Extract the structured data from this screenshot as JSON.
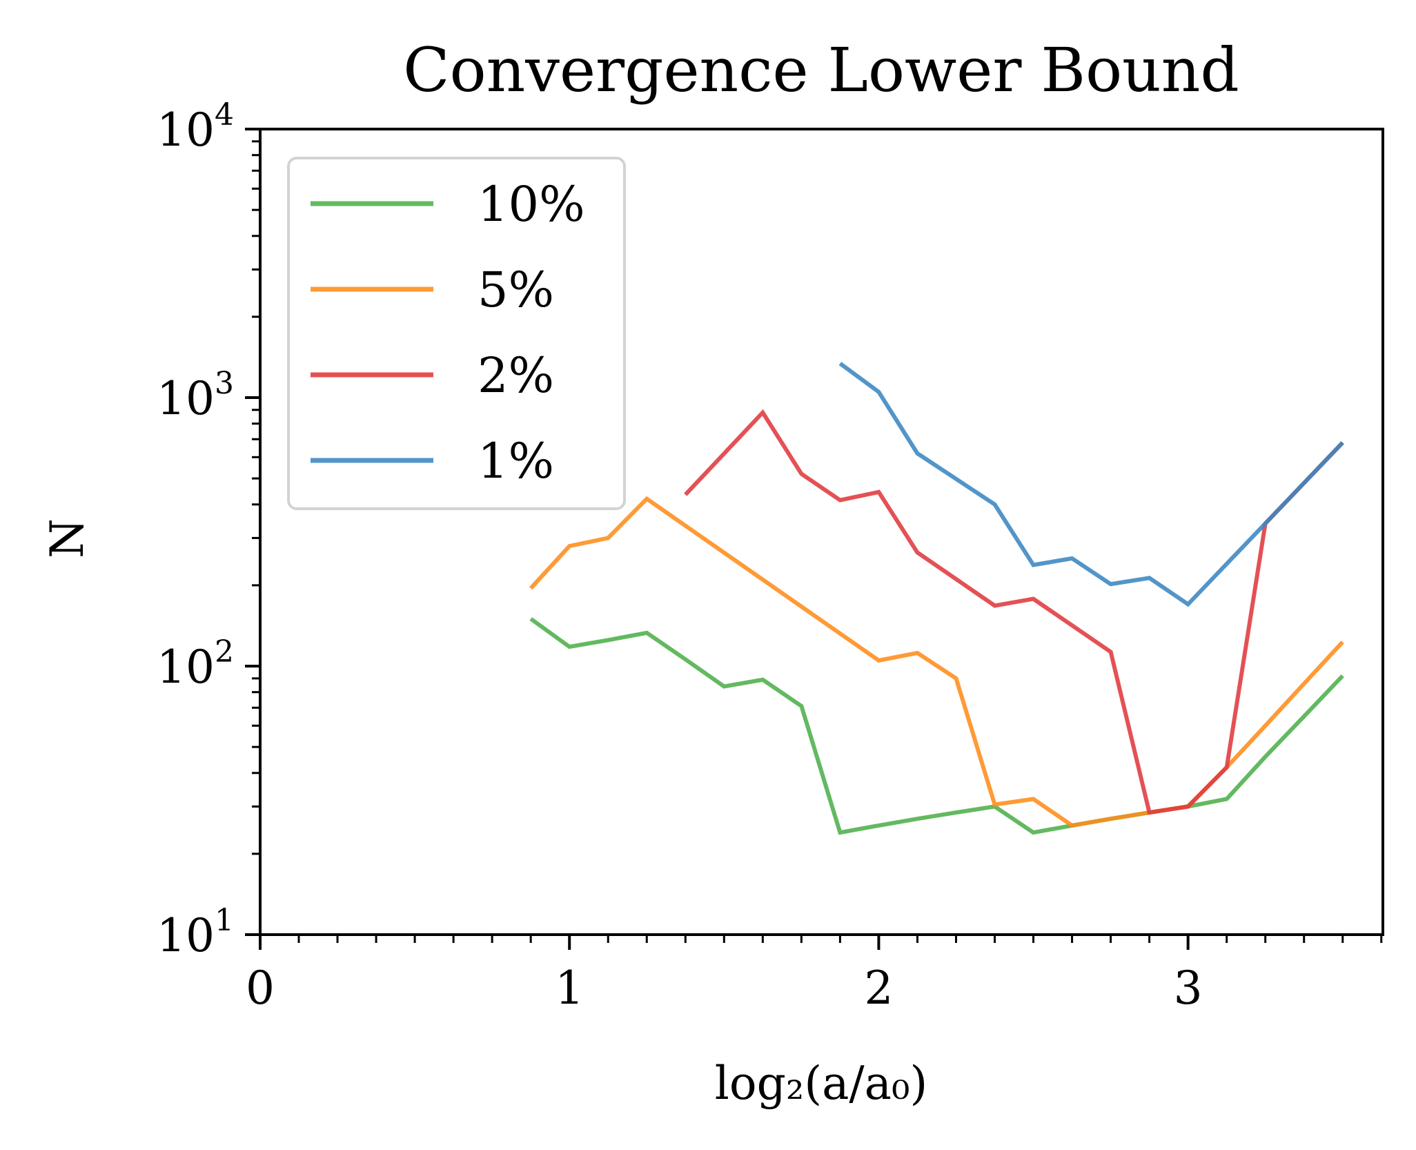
{
  "chart_data": {
    "type": "line",
    "title": "Convergence Lower Bound",
    "xlabel": "log₂(a/a₀)",
    "ylabel": "N",
    "xlim": [
      0,
      3.63
    ],
    "ylim": [
      10,
      10000
    ],
    "yscale": "log",
    "x_ticks": [
      "0",
      "1",
      "2",
      "3"
    ],
    "y_ticks": [
      {
        "base": "10",
        "exp": "1"
      },
      {
        "base": "10",
        "exp": "2"
      },
      {
        "base": "10",
        "exp": "3"
      },
      {
        "base": "10",
        "exp": "4"
      }
    ],
    "grid": false,
    "legend_position": "upper-left",
    "series": [
      {
        "name": "10%",
        "color": "#4daf4a",
        "x": [
          0.875,
          1.0,
          1.125,
          1.25,
          1.375,
          1.5,
          1.625,
          1.75,
          1.875,
          2.0,
          2.125,
          2.25,
          2.375,
          2.5,
          2.625,
          2.75,
          2.875,
          3.0,
          3.125,
          3.25,
          3.375,
          3.5
        ],
        "y": [
          150,
          118,
          125,
          133,
          106,
          84,
          89,
          71,
          24,
          25.5,
          27,
          28.5,
          30,
          24,
          25.5,
          27,
          28.5,
          30,
          32,
          46,
          65,
          92
        ]
      },
      {
        "name": "5%",
        "color": "#ff8c1a",
        "x": [
          0.875,
          1.0,
          1.125,
          1.25,
          2.0,
          2.125,
          2.25,
          2.375,
          2.5,
          2.625,
          2.75,
          2.875,
          3.0,
          3.125,
          3.25,
          3.375,
          3.5
        ],
        "y": [
          195,
          280,
          300,
          420,
          105,
          112,
          90,
          30.5,
          32,
          25.5,
          27,
          28.5,
          30,
          42,
          60,
          86,
          123
        ]
      },
      {
        "name": "2%",
        "color": "#e0393e",
        "x": [
          1.375,
          1.625,
          1.75,
          1.875,
          2.0,
          2.125,
          2.375,
          2.5,
          2.75,
          2.875,
          3.0,
          3.125,
          3.25,
          3.5
        ],
        "y": [
          435,
          880,
          520,
          415,
          445,
          265,
          168,
          178,
          113,
          28.5,
          30,
          42,
          340,
          680
        ]
      },
      {
        "name": "1%",
        "color": "#3a86c2",
        "x": [
          1.875,
          2.0,
          2.125,
          2.375,
          2.5,
          2.625,
          2.75,
          2.875,
          3.0,
          3.25,
          3.5
        ],
        "y": [
          1340,
          1050,
          620,
          400,
          238,
          252,
          202,
          213,
          170,
          340,
          680
        ]
      }
    ]
  }
}
